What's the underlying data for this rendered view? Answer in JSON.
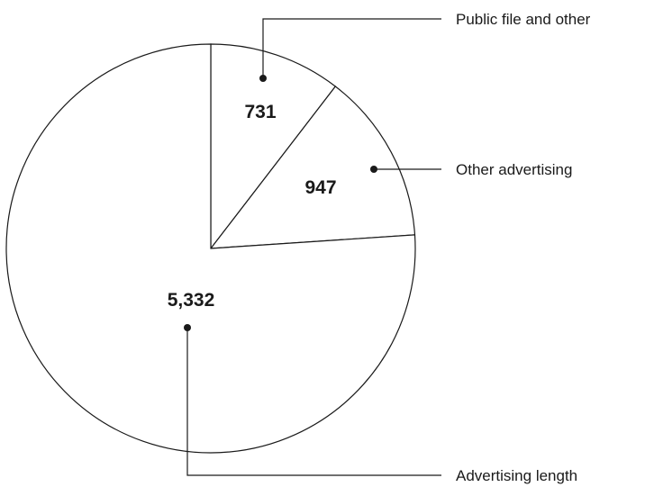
{
  "chart_data": {
    "type": "pie",
    "title": "",
    "slices": [
      {
        "label": "Public file and other",
        "value": 731,
        "value_label": "731"
      },
      {
        "label": "Other advertising",
        "value": 947,
        "value_label": "947"
      },
      {
        "label": "Advertising length",
        "value": 5332,
        "value_label": "5,332"
      }
    ],
    "start": "12 o'clock",
    "direction": "clockwise",
    "fill_color": "#ffffff",
    "line_color": "#1a1a1a",
    "legend": "none (leader-line callouts)"
  }
}
